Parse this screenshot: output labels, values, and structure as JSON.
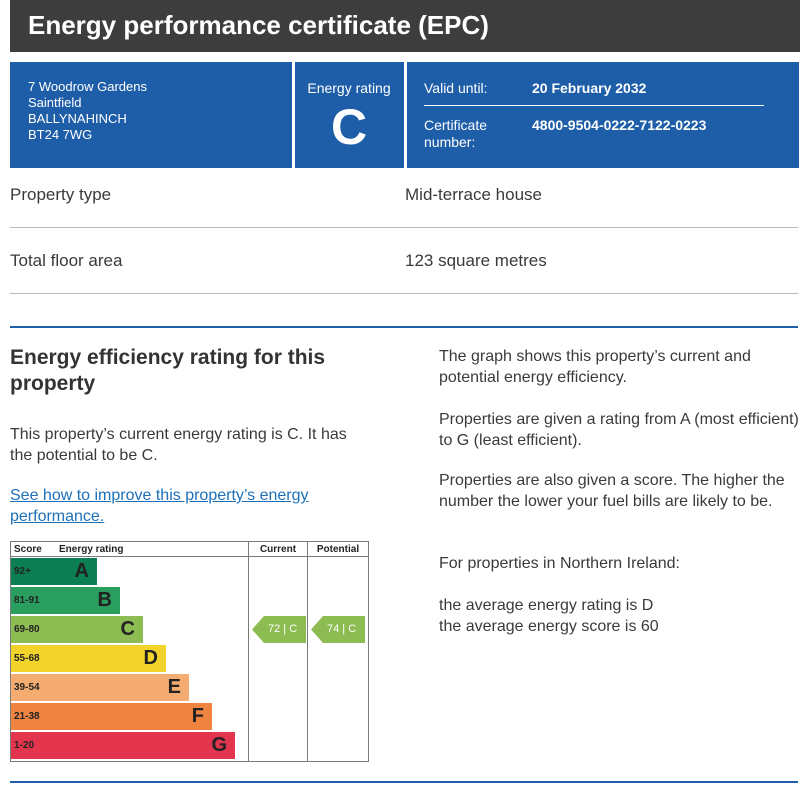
{
  "header": {
    "title": "Energy performance certificate (EPC)"
  },
  "summary": {
    "address": [
      "7 Woodrow Gardens",
      "Saintfield",
      "BALLYNAHINCH",
      "BT24 7WG"
    ],
    "energy_rating_label": "Energy rating",
    "energy_rating": "C",
    "valid_until_label": "Valid until:",
    "valid_until": "20 February 2032",
    "certificate_number_label": [
      "Certificate",
      "number:"
    ],
    "certificate_number": "4800-9504-0222-7122-0223"
  },
  "property": {
    "type_label": "Property type",
    "type_value": "Mid-terrace house",
    "area_label": "Total floor area",
    "area_value": "123 square metres"
  },
  "efficiency": {
    "heading": "Energy efficiency rating for this property",
    "description": "This property’s current energy rating is C. It has the potential to be C.",
    "link": "See how to improve this property’s energy performance.",
    "paragraphs": [
      "The graph shows this property’s current and potential energy efficiency.",
      "Properties are given a rating from A (most efficient) to G (least efficient).",
      "Properties are also given a score. The higher the number the lower your fuel bills are likely to be.",
      "For properties in Northern Ireland:"
    ],
    "averages": [
      "the average energy rating is D",
      "the average energy score is 60"
    ]
  },
  "chart_data": {
    "type": "table",
    "headers": {
      "score": "Score",
      "rating": "Energy rating",
      "current": "Current",
      "potential": "Potential"
    },
    "bands": [
      {
        "score": "92+",
        "letter": "A",
        "color": "#0c7e54"
      },
      {
        "score": "81-91",
        "letter": "B",
        "color": "#2a9e5e"
      },
      {
        "score": "69-80",
        "letter": "C",
        "color": "#8dbd52"
      },
      {
        "score": "55-68",
        "letter": "D",
        "color": "#f2d32c"
      },
      {
        "score": "39-54",
        "letter": "E",
        "color": "#f5ac70"
      },
      {
        "score": "21-38",
        "letter": "F",
        "color": "#ef8340"
      },
      {
        "score": "1-20",
        "letter": "G",
        "color": "#e3354d"
      }
    ],
    "current": {
      "score": 72,
      "band": "C",
      "label": "72 | C"
    },
    "potential": {
      "score": 74,
      "band": "C",
      "label": "74 | C"
    },
    "marker_color": "#8dbd52"
  }
}
